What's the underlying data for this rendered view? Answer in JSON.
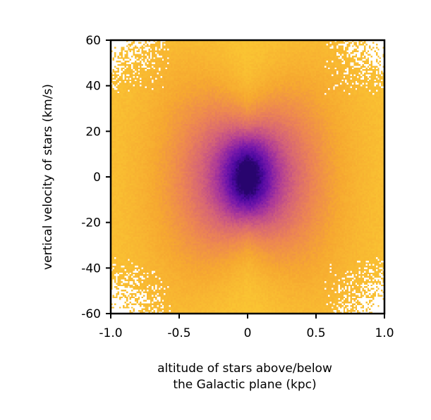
{
  "chart_data": {
    "type": "heatmap",
    "title": "",
    "xlabel": [
      "altitude of stars above/below",
      "the Galactic plane (kpc)"
    ],
    "ylabel": "vertical velocity of stars (km/s)",
    "xlim": [
      -1.0,
      1.0
    ],
    "ylim": [
      -60,
      60
    ],
    "x_ticks": [
      "-1.0",
      "-0.5",
      "0",
      "0.5",
      "1.0"
    ],
    "x_tick_values": [
      -1.0,
      -0.5,
      0,
      0.5,
      1.0
    ],
    "y_ticks": [
      "-60",
      "-40",
      "-20",
      "0",
      "20",
      "40",
      "60"
    ],
    "y_tick_values": [
      -60,
      -40,
      -20,
      0,
      20,
      40,
      60
    ],
    "grid": false,
    "colormap": "plasma (reversed, partial)",
    "colors": {
      "low": "#f8b52a",
      "mid": "#e07a5f",
      "high": "#3a0a9a",
      "empty": "#ffffff"
    },
    "description_values": {
      "x_bin_width_kpc": 0.0125,
      "y_bin_width_kms": 0.75,
      "peak_location": [
        0,
        0
      ]
    }
  }
}
